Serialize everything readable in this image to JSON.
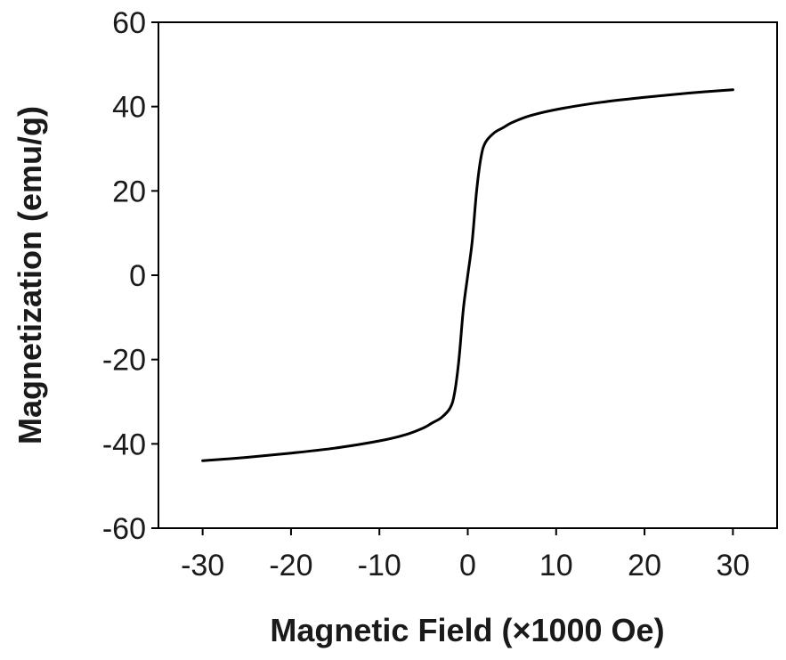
{
  "chart_data": {
    "type": "line",
    "title": "",
    "xlabel": "Magnetic Field (×1000 Oe)",
    "ylabel": "Magnetization (emu/g)",
    "xlim": [
      -35,
      35
    ],
    "ylim": [
      -60,
      60
    ],
    "xticks": [
      -30,
      -20,
      -10,
      0,
      10,
      20,
      30
    ],
    "yticks": [
      -60,
      -40,
      -20,
      0,
      20,
      40,
      60
    ],
    "grid": false,
    "legend": "none",
    "line_color": "#000000",
    "series": [
      {
        "x": [
          -30,
          -25,
          -20,
          -15,
          -10,
          -7,
          -5,
          -4,
          -3,
          -2,
          -1.5,
          -1,
          -0.5,
          0,
          0.5,
          1,
          1.5,
          2,
          3,
          4,
          5,
          7,
          10,
          15,
          20,
          25,
          30
        ],
        "y": [
          -44,
          -43.2,
          -42.2,
          -41,
          -39.3,
          -37.8,
          -36.2,
          -35,
          -33.8,
          -31.5,
          -28,
          -20,
          -8,
          0,
          8,
          20,
          28,
          31.5,
          33.8,
          35,
          36.2,
          37.8,
          39.3,
          41,
          42.2,
          43.2,
          44
        ]
      }
    ]
  }
}
